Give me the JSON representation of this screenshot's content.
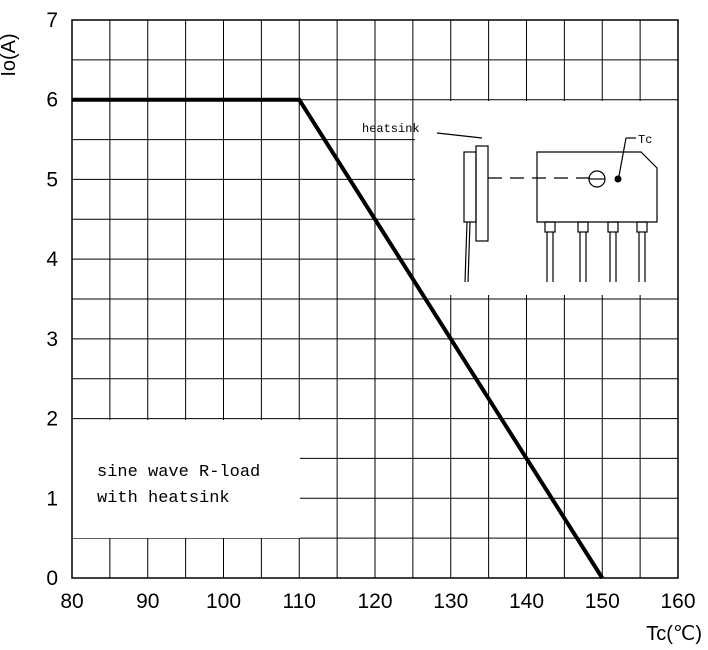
{
  "chart_data": {
    "type": "line",
    "xlabel": "Tc(℃)",
    "ylabel": "Io(A)",
    "xlim": [
      80,
      160
    ],
    "ylim": [
      0,
      7
    ],
    "x_ticks": [
      "80",
      "90",
      "100",
      "110",
      "120",
      "130",
      "140",
      "150",
      "160"
    ],
    "y_ticks": [
      "0",
      "1",
      "2",
      "3",
      "4",
      "5",
      "6",
      "7"
    ],
    "grid": true,
    "series": [
      {
        "x": [
          80,
          110,
          150
        ],
        "y": [
          6,
          6,
          0
        ],
        "color": "#000000"
      }
    ],
    "annotation": {
      "line1": "sine wave R-load",
      "line2": "with heatsink"
    },
    "inset": {
      "heatsink_label": "heatsink",
      "tc_label": "Tc"
    }
  }
}
